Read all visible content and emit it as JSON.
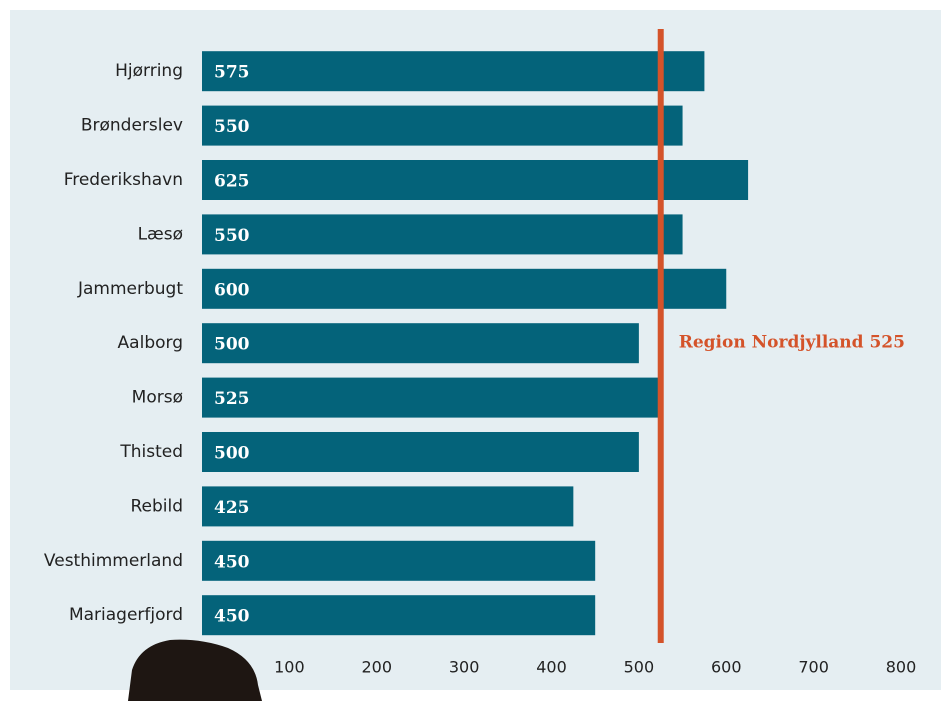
{
  "chart_data": {
    "type": "bar",
    "orientation": "horizontal",
    "categories": [
      "Hjørring",
      "Brønderslev",
      "Frederikshavn",
      "Læsø",
      "Jammerbugt",
      "Aalborg",
      "Morsø",
      "Thisted",
      "Rebild",
      "Vesthimmerland",
      "Mariagerfjord"
    ],
    "values": [
      575,
      550,
      625,
      550,
      600,
      500,
      525,
      500,
      425,
      450,
      450
    ],
    "color": "#04637a",
    "xlim": [
      0,
      800
    ],
    "xticks": [
      100,
      200,
      300,
      400,
      500,
      600,
      700,
      800
    ],
    "reference_line": {
      "value": 525,
      "label": "Region Nordjylland 525",
      "color": "#d4532a"
    }
  }
}
